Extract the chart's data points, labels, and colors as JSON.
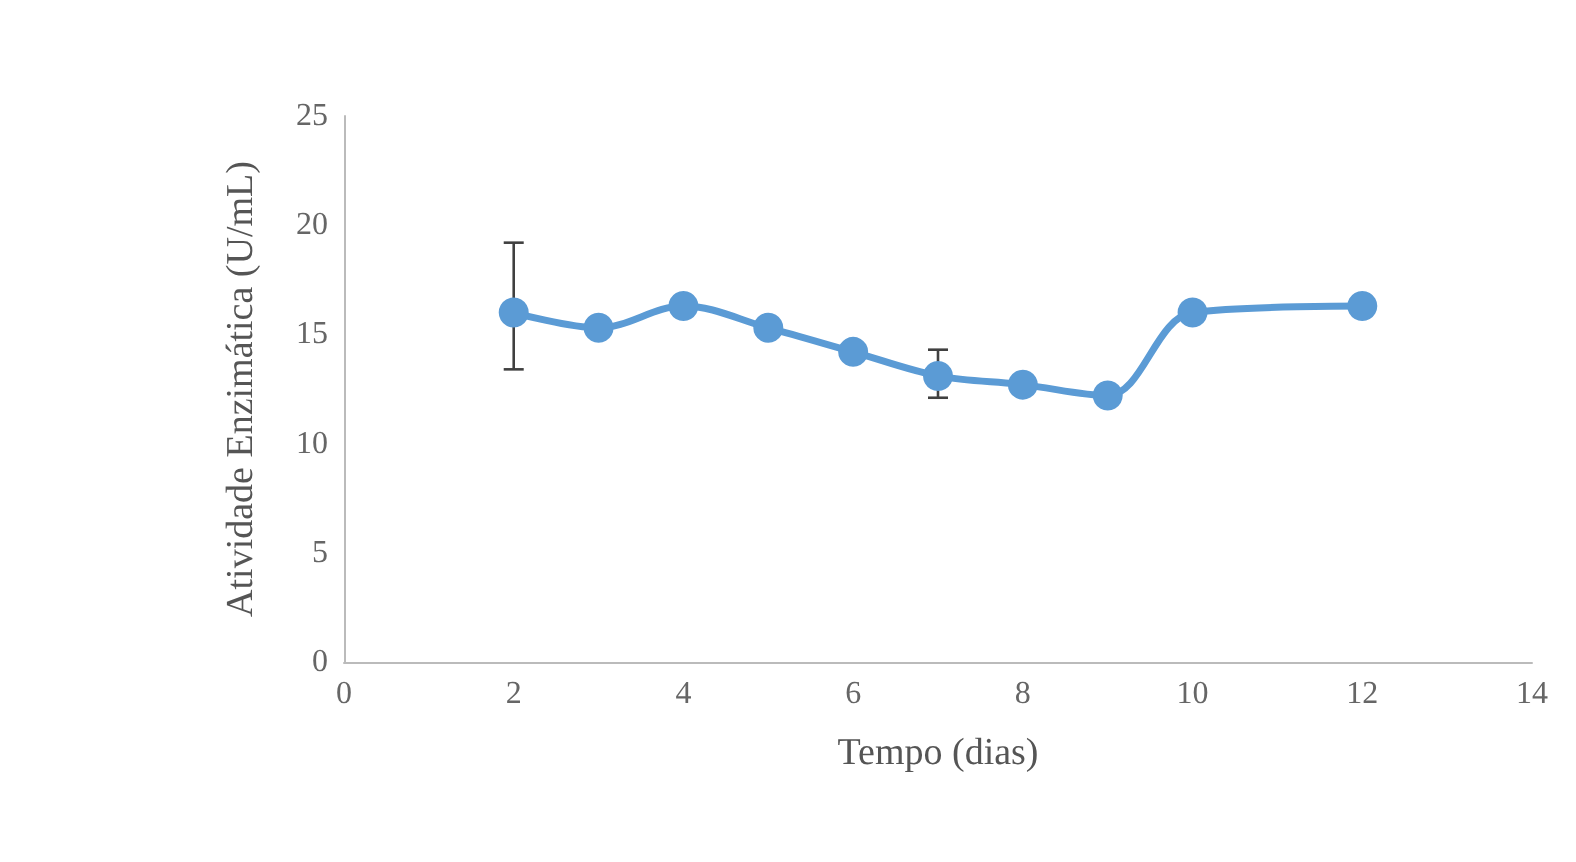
{
  "chart_data": {
    "type": "line",
    "xlabel": "Tempo (dias)",
    "ylabel": "Atividade Enzimática (U/mL)",
    "x": [
      2,
      3,
      4,
      5,
      6,
      7,
      8,
      9,
      10,
      12
    ],
    "series": [
      {
        "color": "#5b9bd5",
        "values": [
          16.0,
          15.3,
          16.3,
          15.3,
          14.2,
          13.1,
          12.7,
          12.2,
          16.0,
          16.3
        ],
        "errors": [
          [
            13.4,
            19.2
          ],
          null,
          null,
          null,
          null,
          [
            12.1,
            14.3
          ],
          null,
          null,
          null,
          null
        ]
      }
    ],
    "xlim": [
      0,
      14
    ],
    "xticks": [
      0,
      2,
      4,
      6,
      8,
      10,
      12,
      14
    ],
    "ylim": [
      0,
      25
    ],
    "yticks": [
      0,
      5,
      10,
      15,
      20,
      25
    ],
    "grid": false,
    "marker": "circle",
    "line_style": "solid"
  }
}
